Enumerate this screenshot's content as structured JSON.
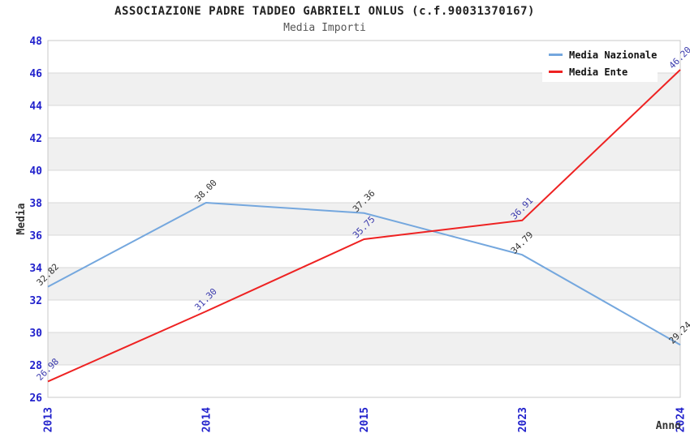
{
  "chart_data": {
    "type": "line",
    "title": "ASSOCIAZIONE PADRE TADDEO GABRIELI ONLUS (c.f.90031370167)",
    "subtitle": "Media Importi",
    "xlabel": "Anno",
    "ylabel": "Media",
    "categories": [
      "2013",
      "2014",
      "2015",
      "2023",
      "2024"
    ],
    "series": [
      {
        "name": "Media Nazionale",
        "color": "#74a7de",
        "label_color": "#333333",
        "values": [
          32.82,
          38.0,
          37.36,
          34.79,
          29.24
        ]
      },
      {
        "name": "Media Ente",
        "color": "#ee2222",
        "label_color": "#3a3aad",
        "values": [
          26.98,
          31.3,
          35.75,
          36.91,
          46.2
        ]
      }
    ],
    "ylim": [
      26,
      48
    ],
    "ytick_step": 2,
    "grid": true,
    "legend_position": "top-right",
    "band_color": "#f0f0f0",
    "grid_color": "#d9d9d9",
    "border_color": "#c8c8c8",
    "tick_color": "#2222cc",
    "axis_title_color": "#333333"
  }
}
